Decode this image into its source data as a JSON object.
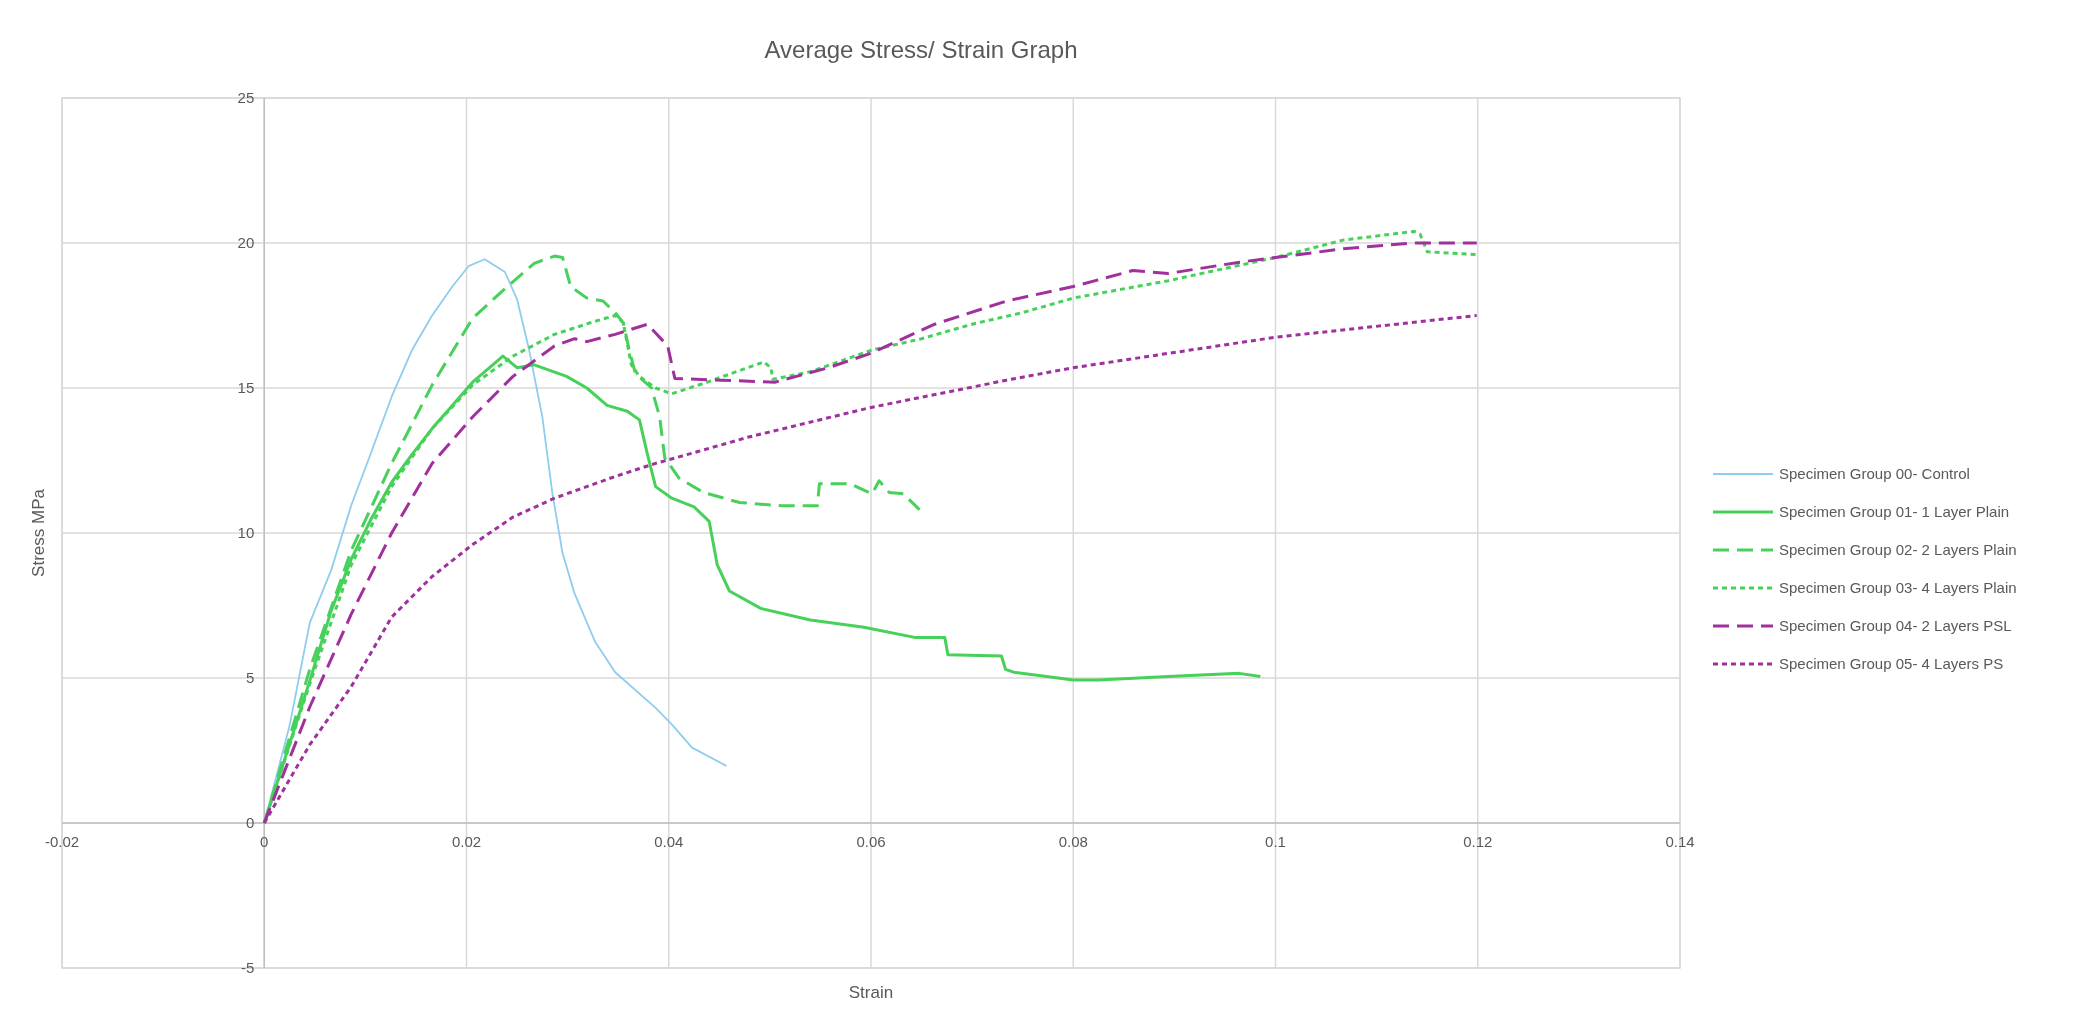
{
  "chart_data": {
    "type": "line",
    "title": "Average Stress/ Strain Graph",
    "xlabel": "Strain",
    "ylabel": "Stress MPa",
    "xlim": [
      -0.02,
      0.14
    ],
    "xticks": [
      -0.02,
      0,
      0.02,
      0.04,
      0.06,
      0.08,
      0.1,
      0.12,
      0.14
    ],
    "ylim": [
      -5,
      25
    ],
    "yticks": [
      -5,
      0,
      5,
      10,
      15,
      20,
      25
    ],
    "grid": true,
    "legend": "right",
    "series": [
      {
        "name": "Specimen Group 00- Control",
        "color": "#8ecdee",
        "line_style": "solid",
        "x": [
          0,
          0.0025,
          0.0045,
          0.0066,
          0.0086,
          0.0106,
          0.0126,
          0.0146,
          0.0166,
          0.0186,
          0.0202,
          0.0218,
          0.0238,
          0.025,
          0.0262,
          0.0275,
          0.0285,
          0.0295,
          0.0307,
          0.0327,
          0.0347,
          0.0387,
          0.0403,
          0.0423,
          0.0457
        ],
        "values": [
          0,
          3.35,
          6.9,
          8.7,
          10.95,
          12.8,
          14.7,
          16.3,
          17.5,
          18.5,
          19.2,
          19.44,
          19.0,
          18.06,
          16.3,
          14.0,
          11.35,
          9.3,
          7.9,
          6.26,
          5.2,
          3.97,
          3.4,
          2.6,
          1.97
        ]
      },
      {
        "name": "Specimen Group 01- 1 Layer Plain",
        "color": "#47d05a",
        "line_style": "solid",
        "x": [
          0,
          0.0045,
          0.0066,
          0.0086,
          0.0106,
          0.0126,
          0.0146,
          0.0166,
          0.0186,
          0.0206,
          0.0226,
          0.0236,
          0.025,
          0.0267,
          0.0299,
          0.0319,
          0.0339,
          0.0359,
          0.0371,
          0.0379,
          0.0387,
          0.0403,
          0.0425,
          0.044,
          0.0448,
          0.046,
          0.0491,
          0.054,
          0.0593,
          0.0643,
          0.0673,
          0.0676,
          0.0729,
          0.0733,
          0.0741,
          0.08,
          0.0825,
          0.0894,
          0.0964,
          0.0985
        ],
        "values": [
          0,
          4.9,
          7.3,
          9.1,
          10.5,
          11.75,
          12.7,
          13.6,
          14.4,
          15.2,
          15.8,
          16.1,
          15.7,
          15.8,
          15.4,
          15.0,
          14.4,
          14.2,
          13.9,
          12.7,
          11.6,
          11.2,
          10.9,
          10.4,
          8.9,
          8.0,
          7.4,
          7.0,
          6.75,
          6.4,
          6.4,
          5.8,
          5.76,
          5.3,
          5.2,
          4.93,
          4.93,
          5.05,
          5.16,
          5.05
        ]
      },
      {
        "name": "Specimen Group 02- 2 Layers Plain",
        "color": "#47d05a",
        "line_style": "dashed",
        "x": [
          0,
          0.0045,
          0.0086,
          0.0126,
          0.0166,
          0.0206,
          0.0234,
          0.0267,
          0.0287,
          0.0295,
          0.0303,
          0.0319,
          0.0335,
          0.0347,
          0.0355,
          0.0361,
          0.0367,
          0.0383,
          0.0391,
          0.0396,
          0.041,
          0.0434,
          0.047,
          0.0512,
          0.0547,
          0.0549,
          0.0579,
          0.0601,
          0.0608,
          0.0618,
          0.0632,
          0.0648
        ],
        "values": [
          0,
          5.3,
          9.4,
          12.4,
          15.1,
          17.4,
          18.3,
          19.3,
          19.55,
          19.5,
          18.5,
          18.1,
          18.0,
          17.6,
          17.25,
          16.3,
          15.5,
          15.0,
          14.0,
          12.6,
          11.9,
          11.4,
          11.05,
          10.94,
          10.94,
          11.7,
          11.7,
          11.35,
          11.8,
          11.4,
          11.35,
          10.8
        ]
      },
      {
        "name": "Specimen Group 03- 4 Layers Plain",
        "color": "#47d05a",
        "line_style": "dotted",
        "x": [
          0,
          0.0045,
          0.0086,
          0.0126,
          0.0166,
          0.0206,
          0.0246,
          0.0287,
          0.0327,
          0.0347,
          0.0355,
          0.0363,
          0.0371,
          0.0387,
          0.0403,
          0.0438,
          0.0494,
          0.0501,
          0.0503,
          0.054,
          0.06,
          0.065,
          0.07,
          0.075,
          0.08,
          0.0894,
          0.1,
          0.1067,
          0.1137,
          0.1143,
          0.115,
          0.1199
        ],
        "values": [
          0,
          4.8,
          8.9,
          11.6,
          13.6,
          15.1,
          16.1,
          16.85,
          17.3,
          17.5,
          17.25,
          15.8,
          15.4,
          15.0,
          14.8,
          15.2,
          15.9,
          15.7,
          15.3,
          15.56,
          16.3,
          16.7,
          17.2,
          17.6,
          18.1,
          18.7,
          19.5,
          20.1,
          20.4,
          20.3,
          19.7,
          19.6
        ]
      },
      {
        "name": "Specimen Group 04- 2 Layers PSL",
        "color": "#a0309e",
        "line_style": "dashed",
        "x": [
          0,
          0.0045,
          0.0086,
          0.0126,
          0.0166,
          0.0206,
          0.0246,
          0.0287,
          0.0307,
          0.0319,
          0.0347,
          0.0379,
          0.0387,
          0.0399,
          0.0406,
          0.0452,
          0.0505,
          0.0558,
          0.06,
          0.0663,
          0.0734,
          0.08,
          0.0859,
          0.0894,
          0.0963,
          0.1,
          0.1067,
          0.1136,
          0.1199
        ],
        "values": [
          0,
          4.0,
          7.2,
          10.0,
          12.4,
          14.0,
          15.4,
          16.45,
          16.7,
          16.6,
          16.85,
          17.2,
          16.9,
          16.45,
          15.33,
          15.27,
          15.2,
          15.7,
          16.2,
          17.2,
          18.0,
          18.5,
          19.05,
          18.95,
          19.33,
          19.5,
          19.8,
          20.0,
          20.0
        ]
      },
      {
        "name": "Specimen Group 05- 4 Layers PS",
        "color": "#a0309e",
        "line_style": "dotted",
        "x": [
          0,
          0.0045,
          0.0086,
          0.0126,
          0.0166,
          0.0206,
          0.0246,
          0.0287,
          0.0347,
          0.0387,
          0.0428,
          0.0478,
          0.06,
          0.0734,
          0.08,
          0.1,
          0.1199
        ],
        "values": [
          0,
          2.7,
          4.7,
          7.1,
          8.5,
          9.6,
          10.55,
          11.2,
          11.95,
          12.4,
          12.8,
          13.3,
          14.33,
          15.27,
          15.7,
          16.75,
          17.5
        ]
      }
    ]
  }
}
